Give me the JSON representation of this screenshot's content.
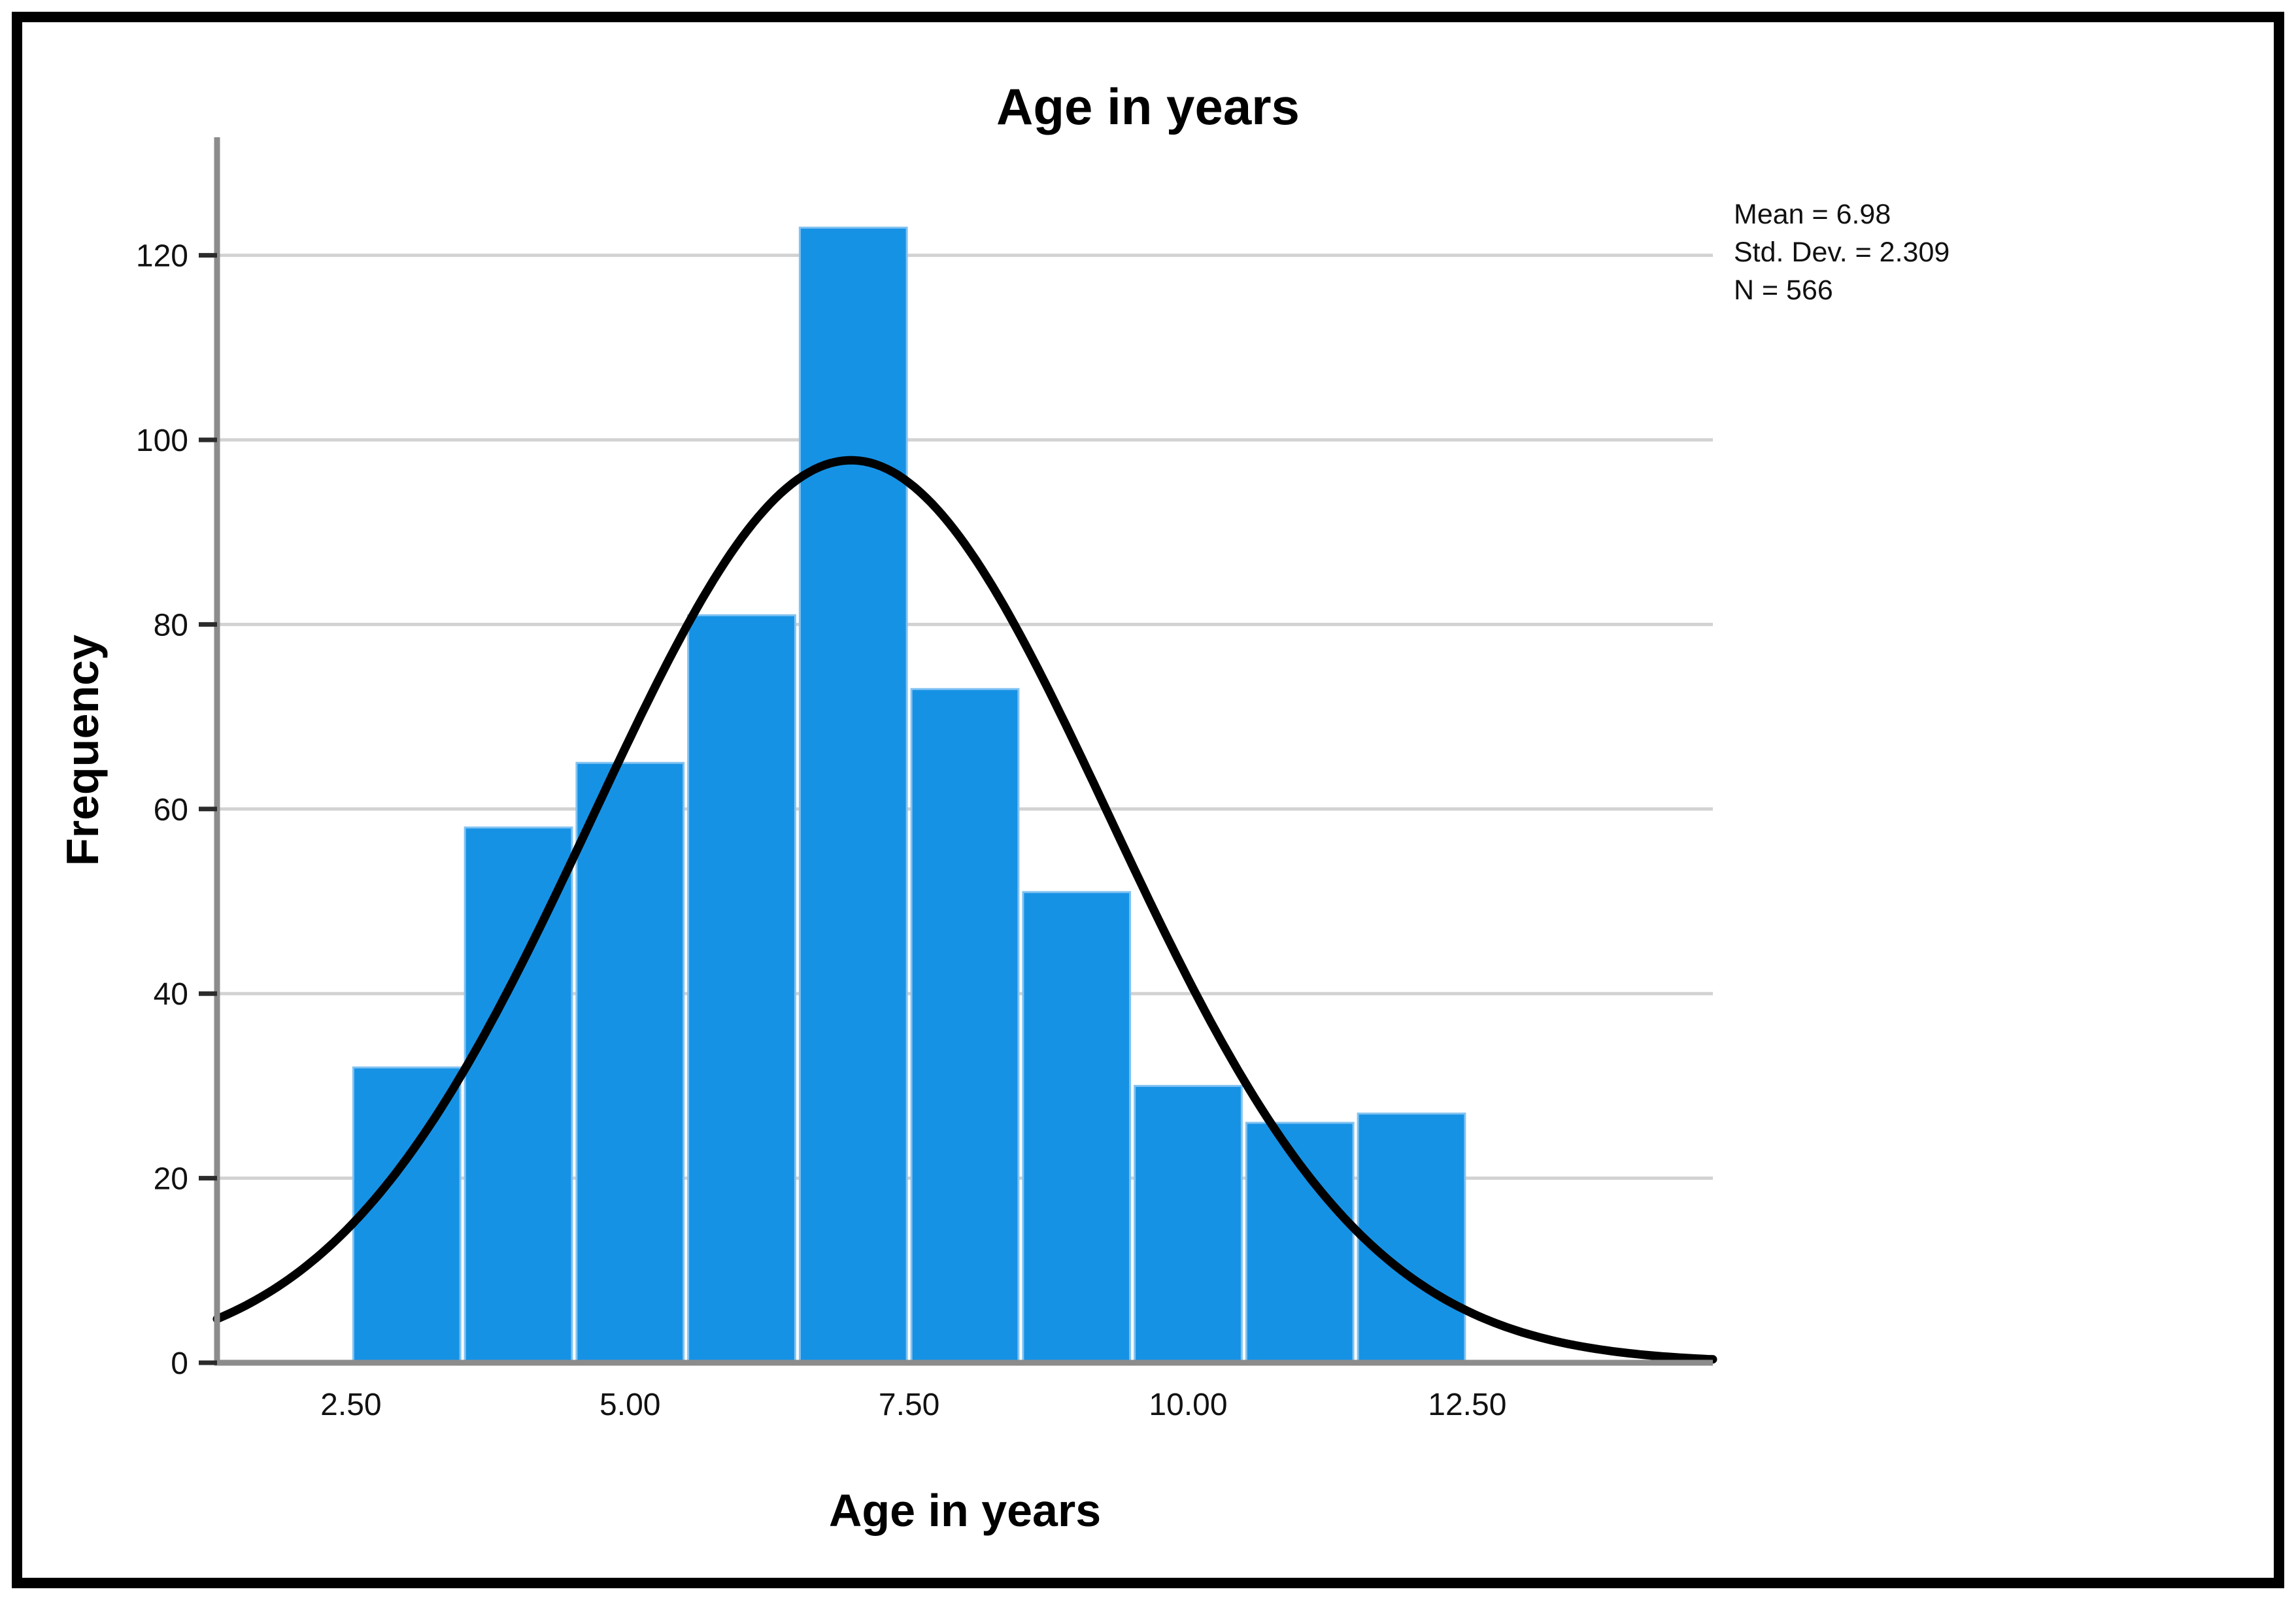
{
  "figure": {
    "title": "Age in years",
    "stats_box": {
      "mean_label": "Mean = 6.98",
      "std_label": "Std. Dev. = 2.309",
      "n_label": "N = 566"
    },
    "colors": {
      "bar_fill": "#1692E5",
      "bar_edge": "#82C3F1",
      "curve": "#000000",
      "gridline": "#D2D2D2",
      "axis_line": "#8C8C8C",
      "tick_mark": "#2B2B2B",
      "frame": "#000000",
      "background": "#FFFFFF",
      "text": "#000000"
    }
  },
  "chart_data": {
    "type": "bar",
    "subtype": "histogram_with_normal_curve",
    "title": "Age in years",
    "xlabel": "Age in years",
    "ylabel": "Frequency",
    "categories": [
      3,
      4,
      5,
      6,
      7,
      8,
      9,
      10,
      11,
      12
    ],
    "values": [
      32,
      58,
      65,
      81,
      123,
      73,
      51,
      30,
      26,
      27
    ],
    "bin_width": 1,
    "bin_start": 2.5,
    "bin_end": 12.5,
    "x_tick_labels": [
      "2.50",
      "5.00",
      "7.50",
      "10.00",
      "12.50"
    ],
    "x_tick_values": [
      2.5,
      5.0,
      7.5,
      10.0,
      12.5
    ],
    "y_tick_labels": [
      "0",
      "20",
      "40",
      "60",
      "80",
      "100",
      "120"
    ],
    "y_tick_values": [
      0,
      20,
      40,
      60,
      80,
      100,
      120
    ],
    "xlim": [
      1.3,
      14.7
    ],
    "ylim": [
      0,
      130
    ],
    "grid": "horizontal",
    "legend": "none",
    "normal_curve": {
      "mean": 6.98,
      "std_dev": 2.309,
      "n": 566
    },
    "annotations": [
      "Mean = 6.98",
      "Std. Dev. = 2.309",
      "N = 566"
    ]
  }
}
